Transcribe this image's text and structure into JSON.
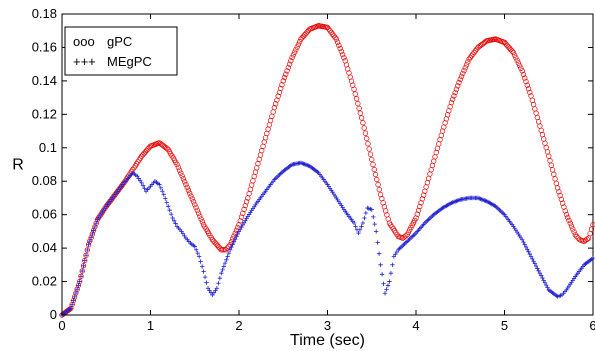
{
  "chart_data": {
    "type": "scatter",
    "title": "",
    "xlabel": "Time (sec)",
    "ylabel": "R",
    "xlim": [
      0,
      6
    ],
    "ylim": [
      0,
      0.18
    ],
    "xticks": [
      "0",
      "1",
      "2",
      "3",
      "4",
      "5",
      "6"
    ],
    "yticks": [
      "0",
      "0.02",
      "0.04",
      "0.06",
      "0.08",
      "0.1",
      "0.12",
      "0.14",
      "0.16",
      "0.18"
    ],
    "grid": false,
    "legend_position": "top-left",
    "series": [
      {
        "name": "gPC",
        "legend_marker": "ooo",
        "marker": "circle",
        "color": "#e60000",
        "points": [
          [
            0.0,
            0.0
          ],
          [
            0.1,
            0.004
          ],
          [
            0.2,
            0.02
          ],
          [
            0.3,
            0.042
          ],
          [
            0.4,
            0.057
          ],
          [
            0.5,
            0.065
          ],
          [
            0.6,
            0.072
          ],
          [
            0.7,
            0.079
          ],
          [
            0.8,
            0.087
          ],
          [
            0.9,
            0.095
          ],
          [
            1.0,
            0.101
          ],
          [
            1.1,
            0.103
          ],
          [
            1.2,
            0.099
          ],
          [
            1.3,
            0.09
          ],
          [
            1.4,
            0.078
          ],
          [
            1.5,
            0.066
          ],
          [
            1.6,
            0.054
          ],
          [
            1.7,
            0.045
          ],
          [
            1.8,
            0.039
          ],
          [
            1.85,
            0.039
          ],
          [
            1.9,
            0.042
          ],
          [
            2.0,
            0.054
          ],
          [
            2.1,
            0.07
          ],
          [
            2.2,
            0.088
          ],
          [
            2.3,
            0.106
          ],
          [
            2.4,
            0.124
          ],
          [
            2.5,
            0.14
          ],
          [
            2.6,
            0.154
          ],
          [
            2.7,
            0.165
          ],
          [
            2.8,
            0.171
          ],
          [
            2.9,
            0.173
          ],
          [
            3.0,
            0.172
          ],
          [
            3.1,
            0.165
          ],
          [
            3.2,
            0.152
          ],
          [
            3.3,
            0.135
          ],
          [
            3.4,
            0.115
          ],
          [
            3.5,
            0.093
          ],
          [
            3.6,
            0.072
          ],
          [
            3.7,
            0.055
          ],
          [
            3.8,
            0.047
          ],
          [
            3.85,
            0.046
          ],
          [
            3.9,
            0.048
          ],
          [
            4.0,
            0.058
          ],
          [
            4.1,
            0.074
          ],
          [
            4.2,
            0.092
          ],
          [
            4.3,
            0.11
          ],
          [
            4.4,
            0.127
          ],
          [
            4.5,
            0.141
          ],
          [
            4.6,
            0.153
          ],
          [
            4.7,
            0.16
          ],
          [
            4.8,
            0.164
          ],
          [
            4.9,
            0.165
          ],
          [
            5.0,
            0.163
          ],
          [
            5.1,
            0.157
          ],
          [
            5.2,
            0.146
          ],
          [
            5.3,
            0.131
          ],
          [
            5.4,
            0.113
          ],
          [
            5.5,
            0.095
          ],
          [
            5.6,
            0.076
          ],
          [
            5.7,
            0.06
          ],
          [
            5.8,
            0.048
          ],
          [
            5.85,
            0.045
          ],
          [
            5.9,
            0.044
          ],
          [
            5.95,
            0.046
          ],
          [
            6.0,
            0.054
          ]
        ]
      },
      {
        "name": "MEgPC",
        "legend_marker": "+++",
        "marker": "plus",
        "color": "#1f1fd0",
        "points": [
          [
            0.0,
            0.0
          ],
          [
            0.1,
            0.004
          ],
          [
            0.2,
            0.02
          ],
          [
            0.3,
            0.042
          ],
          [
            0.4,
            0.057
          ],
          [
            0.5,
            0.065
          ],
          [
            0.6,
            0.072
          ],
          [
            0.7,
            0.079
          ],
          [
            0.8,
            0.085
          ],
          [
            0.85,
            0.083
          ],
          [
            0.9,
            0.079
          ],
          [
            0.95,
            0.074
          ],
          [
            1.0,
            0.077
          ],
          [
            1.05,
            0.08
          ],
          [
            1.1,
            0.078
          ],
          [
            1.15,
            0.072
          ],
          [
            1.2,
            0.065
          ],
          [
            1.25,
            0.058
          ],
          [
            1.3,
            0.053
          ],
          [
            1.35,
            0.05
          ],
          [
            1.4,
            0.046
          ],
          [
            1.45,
            0.043
          ],
          [
            1.5,
            0.041
          ],
          [
            1.55,
            0.035
          ],
          [
            1.6,
            0.026
          ],
          [
            1.65,
            0.016
          ],
          [
            1.7,
            0.012
          ],
          [
            1.75,
            0.016
          ],
          [
            1.8,
            0.025
          ],
          [
            1.9,
            0.039
          ],
          [
            2.0,
            0.05
          ],
          [
            2.1,
            0.059
          ],
          [
            2.2,
            0.067
          ],
          [
            2.3,
            0.074
          ],
          [
            2.4,
            0.081
          ],
          [
            2.5,
            0.086
          ],
          [
            2.6,
            0.09
          ],
          [
            2.7,
            0.091
          ],
          [
            2.8,
            0.089
          ],
          [
            2.9,
            0.085
          ],
          [
            3.0,
            0.078
          ],
          [
            3.1,
            0.07
          ],
          [
            3.2,
            0.062
          ],
          [
            3.3,
            0.055
          ],
          [
            3.35,
            0.049
          ],
          [
            3.4,
            0.055
          ],
          [
            3.45,
            0.064
          ],
          [
            3.5,
            0.063
          ],
          [
            3.55,
            0.05
          ],
          [
            3.6,
            0.03
          ],
          [
            3.65,
            0.013
          ],
          [
            3.7,
            0.02
          ],
          [
            3.75,
            0.035
          ],
          [
            3.8,
            0.039
          ],
          [
            3.9,
            0.044
          ],
          [
            4.0,
            0.049
          ],
          [
            4.1,
            0.055
          ],
          [
            4.2,
            0.06
          ],
          [
            4.3,
            0.064
          ],
          [
            4.4,
            0.067
          ],
          [
            4.5,
            0.069
          ],
          [
            4.6,
            0.07
          ],
          [
            4.7,
            0.07
          ],
          [
            4.8,
            0.068
          ],
          [
            4.9,
            0.065
          ],
          [
            5.0,
            0.06
          ],
          [
            5.1,
            0.053
          ],
          [
            5.2,
            0.045
          ],
          [
            5.3,
            0.035
          ],
          [
            5.4,
            0.025
          ],
          [
            5.5,
            0.015
          ],
          [
            5.6,
            0.011
          ],
          [
            5.65,
            0.012
          ],
          [
            5.7,
            0.015
          ],
          [
            5.8,
            0.023
          ],
          [
            5.9,
            0.03
          ],
          [
            6.0,
            0.034
          ]
        ]
      }
    ]
  }
}
